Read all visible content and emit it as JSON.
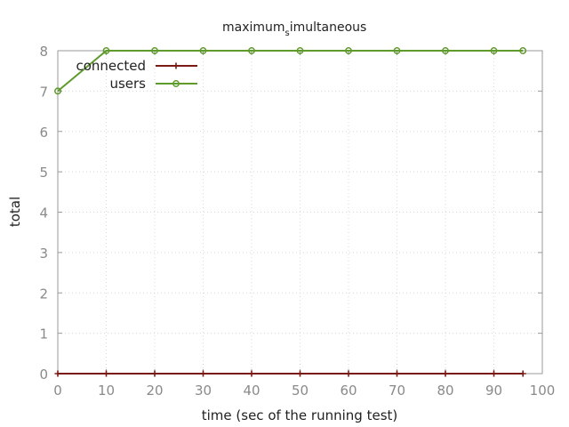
{
  "chart_data": {
    "type": "line",
    "title_main": "maximum",
    "title_sub": "s",
    "title_rest": "imultaneous",
    "xlabel": "time (sec of the running test)",
    "ylabel": "total",
    "xlim": [
      0,
      100
    ],
    "ylim": [
      0,
      8
    ],
    "xticks": [
      "0",
      "10",
      "20",
      "30",
      "40",
      "50",
      "60",
      "70",
      "80",
      "90",
      "100"
    ],
    "yticks": [
      "0",
      "1",
      "2",
      "3",
      "4",
      "5",
      "6",
      "7",
      "8"
    ],
    "grid": true,
    "legend_position": "top-left",
    "series": [
      {
        "name": "connected",
        "color": "#7b1a12",
        "marker": "plus",
        "x": [
          0,
          10,
          20,
          30,
          40,
          50,
          60,
          70,
          80,
          90,
          96
        ],
        "y": [
          0,
          0,
          0,
          0,
          0,
          0,
          0,
          0,
          0,
          0,
          0
        ]
      },
      {
        "name": "users",
        "color": "#5e9a2c",
        "marker": "circle",
        "x": [
          0,
          10,
          20,
          30,
          40,
          50,
          60,
          70,
          80,
          90,
          96
        ],
        "y": [
          7,
          8,
          8,
          8,
          8,
          8,
          8,
          8,
          8,
          8,
          8
        ]
      }
    ]
  }
}
